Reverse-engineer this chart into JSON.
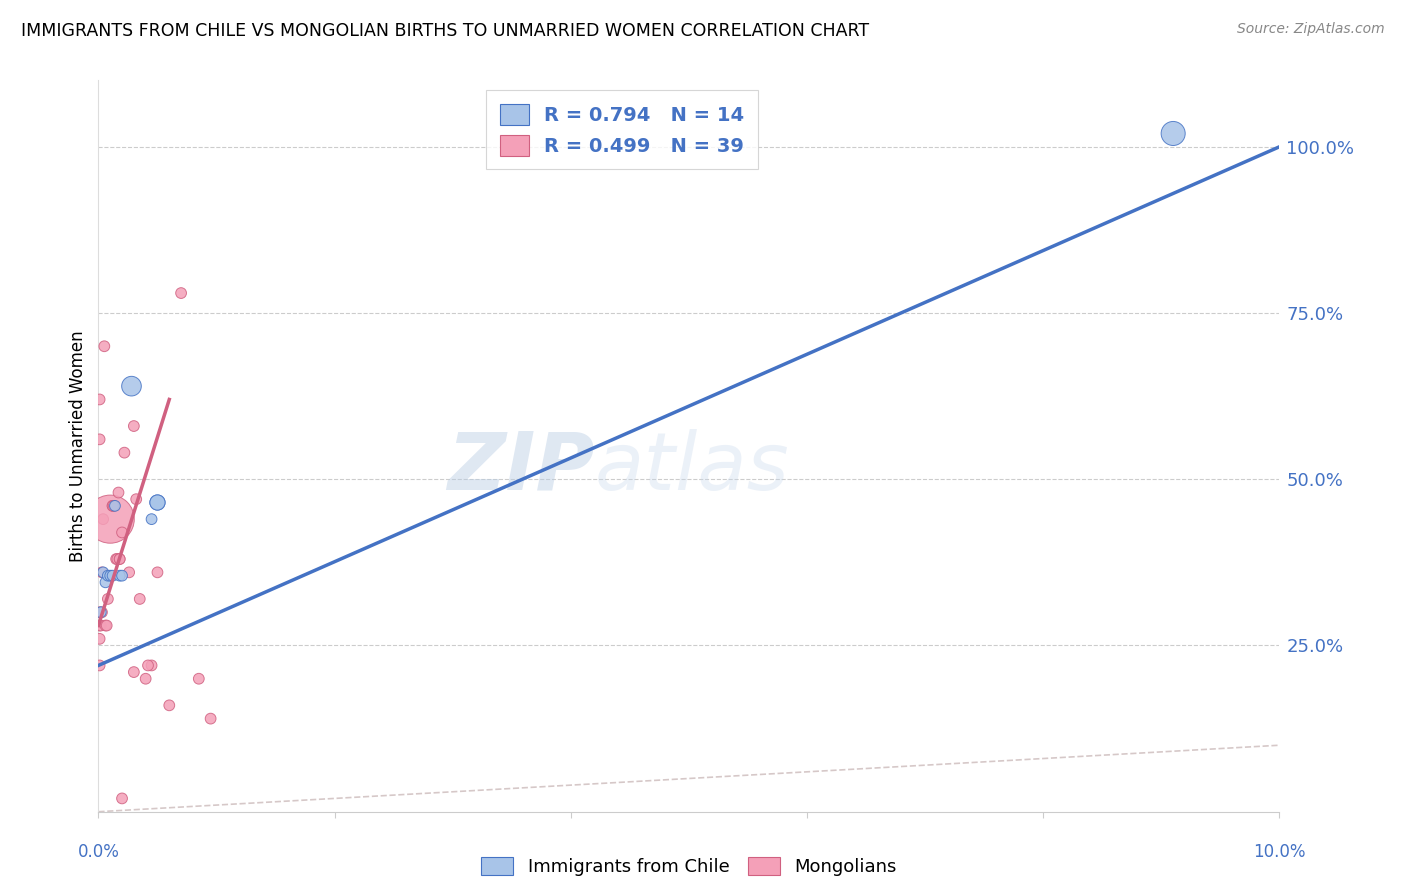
{
  "title": "IMMIGRANTS FROM CHILE VS MONGOLIAN BIRTHS TO UNMARRIED WOMEN CORRELATION CHART",
  "source": "Source: ZipAtlas.com",
  "ylabel": "Births to Unmarried Women",
  "yaxis_labels": [
    "25.0%",
    "50.0%",
    "75.0%",
    "100.0%"
  ],
  "yaxis_values": [
    0.25,
    0.5,
    0.75,
    1.0
  ],
  "legend1_R": "0.794",
  "legend1_N": "14",
  "legend2_R": "0.499",
  "legend2_N": "39",
  "legend1_label": "Immigrants from Chile",
  "legend2_label": "Mongolians",
  "blue_color": "#a8c4e8",
  "blue_line_color": "#4472c4",
  "pink_color": "#f4a0b8",
  "pink_line_color": "#d06080",
  "diagonal_color": "#ccbbbb",
  "watermark_zip": "ZIP",
  "watermark_atlas": "atlas",
  "blue_scatter_x": [
    0.0002,
    0.0004,
    0.0006,
    0.0008,
    0.001,
    0.0012,
    0.0014,
    0.0018,
    0.002,
    0.0028,
    0.0045,
    0.005,
    0.005,
    0.091
  ],
  "blue_scatter_y": [
    0.3,
    0.36,
    0.345,
    0.355,
    0.355,
    0.355,
    0.46,
    0.355,
    0.355,
    0.64,
    0.44,
    0.465,
    0.465,
    1.02
  ],
  "blue_scatter_size": [
    60,
    60,
    60,
    60,
    60,
    60,
    60,
    60,
    60,
    200,
    60,
    120,
    120,
    300
  ],
  "pink_scatter_x": [
    0.0001,
    0.0001,
    0.0001,
    0.0001,
    0.0002,
    0.0003,
    0.0003,
    0.0004,
    0.0005,
    0.0006,
    0.0007,
    0.0008,
    0.001,
    0.0012,
    0.0012,
    0.0013,
    0.0015,
    0.0016,
    0.0017,
    0.0018,
    0.0018,
    0.002,
    0.0022,
    0.0026,
    0.003,
    0.0032,
    0.0035,
    0.004,
    0.0045,
    0.005,
    0.006,
    0.007,
    0.0085,
    0.0095,
    0.002,
    0.003,
    0.0042,
    0.0001,
    0.0001
  ],
  "pink_scatter_y": [
    0.3,
    0.28,
    0.26,
    0.22,
    0.28,
    0.3,
    0.36,
    0.44,
    0.7,
    0.28,
    0.28,
    0.32,
    0.44,
    0.46,
    0.46,
    0.46,
    0.38,
    0.38,
    0.48,
    0.38,
    0.38,
    0.42,
    0.54,
    0.36,
    0.58,
    0.47,
    0.32,
    0.2,
    0.22,
    0.36,
    0.16,
    0.78,
    0.2,
    0.14,
    0.02,
    0.21,
    0.22,
    0.62,
    0.56
  ],
  "pink_scatter_size": [
    60,
    60,
    60,
    60,
    60,
    60,
    60,
    60,
    60,
    60,
    60,
    60,
    1200,
    60,
    60,
    60,
    60,
    60,
    60,
    60,
    60,
    60,
    60,
    60,
    60,
    60,
    60,
    60,
    60,
    60,
    60,
    60,
    60,
    60,
    60,
    60,
    60,
    60,
    60
  ],
  "blue_fit_x": [
    0.0,
    0.1
  ],
  "blue_fit_y": [
    0.22,
    1.0
  ],
  "pink_fit_x": [
    0.0,
    0.006
  ],
  "pink_fit_y": [
    0.28,
    0.62
  ],
  "xmin": 0.0,
  "xmax": 0.1,
  "ymin": 0.0,
  "ymax": 1.1,
  "xtick_positions": [
    0.0,
    0.02,
    0.04,
    0.06,
    0.08,
    0.1
  ]
}
